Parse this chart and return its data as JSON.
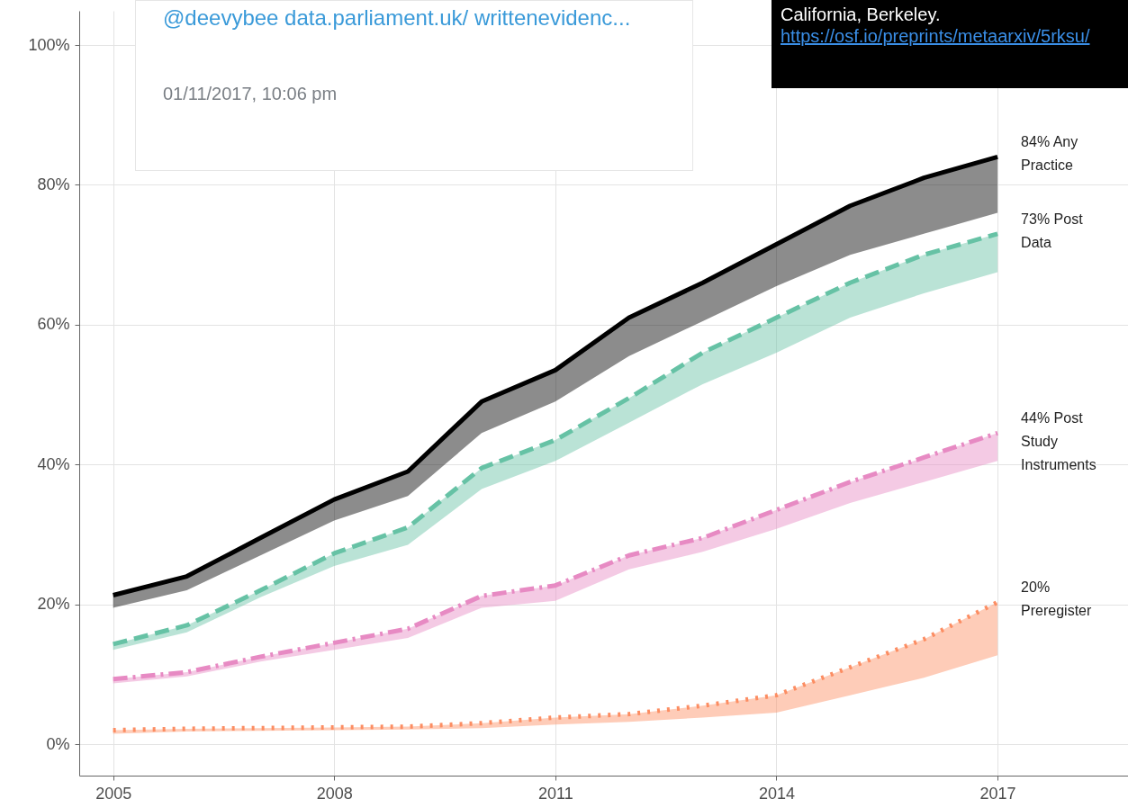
{
  "chart_data": {
    "type": "line",
    "x": [
      2005,
      2006,
      2007,
      2008,
      2009,
      2010,
      2011,
      2012,
      2013,
      2014,
      2015,
      2016,
      2017
    ],
    "series": [
      {
        "name": "84% Any Practice",
        "color": "#000000",
        "line_style": "solid",
        "values": [
          21.3,
          24,
          29.5,
          35,
          39,
          49,
          53.5,
          61,
          66,
          71.5,
          77,
          81,
          84
        ],
        "lower": [
          19.5,
          22,
          27,
          32,
          35.5,
          44.5,
          49,
          55.5,
          60.5,
          65.5,
          70,
          73,
          76
        ],
        "upper": [
          21.3,
          24,
          29.5,
          35,
          39,
          49,
          53.5,
          61,
          66,
          71.5,
          77,
          81,
          84
        ]
      },
      {
        "name": "73% Post Data",
        "color": "#66c2a5",
        "line_style": "dashed",
        "values": [
          14.3,
          17,
          22,
          27.3,
          31,
          39.5,
          43.5,
          49.5,
          56,
          61,
          66,
          70,
          73
        ],
        "lower": [
          13.5,
          16,
          21,
          25.5,
          28.5,
          36.5,
          40.5,
          46,
          51.5,
          56,
          61,
          64.5,
          67.5
        ],
        "upper": [
          14.3,
          17,
          22,
          27.3,
          31,
          39.5,
          43.5,
          49.5,
          56,
          61,
          66,
          70,
          73
        ]
      },
      {
        "name": "44% Post Study Instruments",
        "color": "#e78ac3",
        "line_style": "dashdot",
        "values": [
          9.3,
          10.3,
          12.5,
          14.5,
          16.5,
          21.2,
          22.7,
          27,
          29.5,
          33.5,
          37.5,
          41,
          44.5
        ],
        "lower": [
          8.7,
          9.7,
          11.8,
          13.5,
          15.2,
          19.5,
          20.5,
          25,
          27.5,
          30.8,
          34.5,
          37.5,
          40.5
        ],
        "upper": [
          9.3,
          10.3,
          12.5,
          14.5,
          16.5,
          21.2,
          22.7,
          27,
          29.5,
          33.5,
          37.5,
          41,
          44.5
        ]
      },
      {
        "name": "20% Preregister",
        "color": "#fc8d62",
        "line_style": "dotted",
        "values": [
          2,
          2.2,
          2.3,
          2.4,
          2.5,
          3,
          3.8,
          4.3,
          5.5,
          7,
          11,
          15,
          20.3
        ],
        "lower": [
          1.5,
          1.8,
          1.9,
          2,
          2.1,
          2.3,
          2.8,
          3.2,
          3.8,
          4.5,
          7,
          9.5,
          12.7
        ],
        "upper": [
          2,
          2.2,
          2.3,
          2.4,
          2.5,
          3,
          3.8,
          4.3,
          5.5,
          7,
          11,
          15,
          20.3
        ]
      }
    ],
    "xlim": [
      2004.54,
      2018.77
    ],
    "xticks": [
      2005,
      2008,
      2011,
      2014,
      2017
    ],
    "ylim": [
      -4.5,
      104.9
    ],
    "yticks": [
      {
        "value": 0,
        "label": "0%"
      },
      {
        "value": 20,
        "label": "20%"
      },
      {
        "value": 40,
        "label": "40%"
      },
      {
        "value": 60,
        "label": "60%"
      },
      {
        "value": 80,
        "label": "80%"
      },
      {
        "value": 100,
        "label": "100%"
      }
    ],
    "grid": true,
    "legend": false,
    "annotations": [
      "@deevybee data.parliament.uk/ writtenevidenc...",
      "01/11/2017, 10:06 pm",
      "California, Berkeley.",
      "https://osf.io/preprints/metaarxiv/5rksu/"
    ]
  }
}
